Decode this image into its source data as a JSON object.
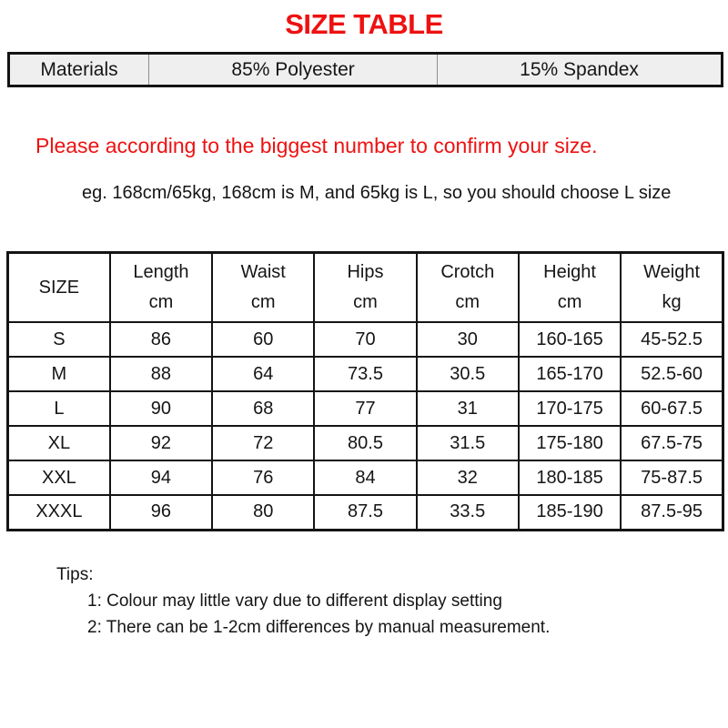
{
  "title": "SIZE TABLE",
  "materials_row": {
    "label": "Materials",
    "col1": "85% Polyester",
    "col2": "15% Spandex"
  },
  "notice": "Please according to the biggest number to confirm your size.",
  "example": "eg. 168cm/65kg, 168cm is M, and 65kg is L, so you should choose L size",
  "size_table": {
    "size_header": "SIZE",
    "columns": [
      {
        "name": "Length",
        "unit": "cm"
      },
      {
        "name": "Waist",
        "unit": "cm"
      },
      {
        "name": "Hips",
        "unit": "cm"
      },
      {
        "name": "Crotch",
        "unit": "cm"
      },
      {
        "name": "Height",
        "unit": "cm"
      },
      {
        "name": "Weight",
        "unit": "kg"
      }
    ],
    "rows": [
      [
        "S",
        "86",
        "60",
        "70",
        "30",
        "160-165",
        "45-52.5"
      ],
      [
        "M",
        "88",
        "64",
        "73.5",
        "30.5",
        "165-170",
        "52.5-60"
      ],
      [
        "L",
        "90",
        "68",
        "77",
        "31",
        "170-175",
        "60-67.5"
      ],
      [
        "XL",
        "92",
        "72",
        "80.5",
        "31.5",
        "175-180",
        "67.5-75"
      ],
      [
        "XXL",
        "94",
        "76",
        "84",
        "32",
        "180-185",
        "75-87.5"
      ],
      [
        "XXXL",
        "96",
        "80",
        "87.5",
        "33.5",
        "185-190",
        "87.5-95"
      ]
    ]
  },
  "tips": {
    "label": "Tips:",
    "items": [
      "1: Colour may little vary due to different display setting",
      "2: There can be 1-2cm differences by manual measurement."
    ]
  },
  "colors": {
    "accent_red": "#ee1111",
    "text": "#151515",
    "table_border": "#141414",
    "materials_bg": "#efefef",
    "materials_divider": "#8f8f8f"
  }
}
